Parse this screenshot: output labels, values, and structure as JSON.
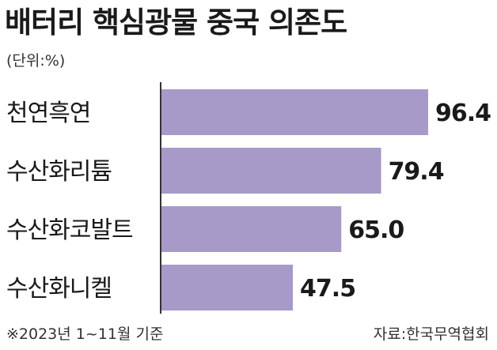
{
  "chart_data": {
    "type": "bar",
    "orientation": "horizontal",
    "title": "배터리 핵심광물 중국 의존도",
    "unit_note": "(단위:%)",
    "categories": [
      "천연흑연",
      "수산화리튬",
      "수산화코발트",
      "수산화니켈"
    ],
    "values": [
      96.4,
      79.4,
      65.0,
      47.5
    ],
    "value_labels": [
      "96.4",
      "79.4",
      "65.0",
      "47.5"
    ],
    "bar_color": "#a79ac8",
    "axis_color": "#333333",
    "grid": false,
    "legend": "none"
  },
  "footer": {
    "note": "※2023년 1~11월 기준",
    "source": "자료:한국무역협회"
  }
}
